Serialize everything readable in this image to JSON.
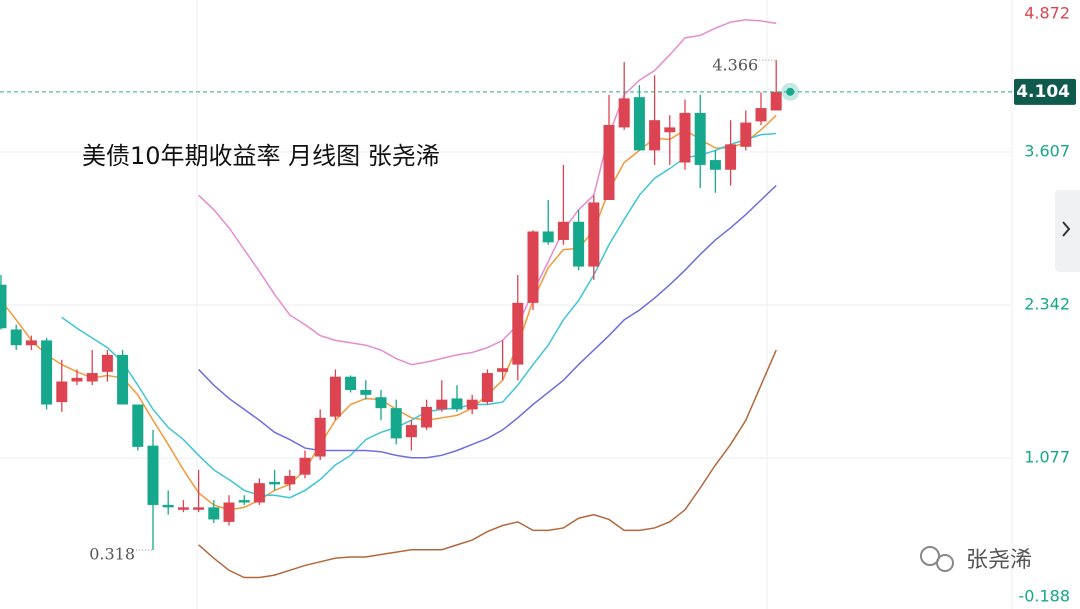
{
  "chart_data": {
    "type": "candlestick",
    "title": "美债10年期收益率 月线图 张尧浠",
    "watermark": "张尧浠",
    "ylim": [
      -0.17,
      4.863
    ],
    "yticks": [
      4.872,
      3.607,
      2.342,
      1.077,
      -0.188
    ],
    "grid": true,
    "last_price": 4.104,
    "annotations": [
      {
        "value": 4.366
      },
      {
        "value": 0.318
      }
    ],
    "up_color": "#dd4451",
    "down_color": "#16a88c",
    "open": [
      2.51,
      2.14,
      2.01,
      2.05,
      1.54,
      1.71,
      1.71,
      1.79,
      1.93,
      1.52,
      1.18,
      0.69,
      0.65,
      0.65,
      0.67,
      0.55,
      0.73,
      0.71,
      0.88,
      0.86,
      0.94,
      1.09,
      1.42,
      1.75,
      1.64,
      1.58,
      1.49,
      1.25,
      1.33,
      1.48,
      1.57,
      1.48,
      1.54,
      1.79,
      1.85,
      2.36,
      2.95,
      2.88,
      3.03,
      2.66,
      3.21,
      3.81,
      4.06,
      3.62,
      3.77,
      3.52,
      3.93,
      3.54,
      3.46,
      3.65,
      3.86,
      3.95
    ],
    "high": [
      2.59,
      2.18,
      2.09,
      2.07,
      1.89,
      1.81,
      1.97,
      1.97,
      1.97,
      1.52,
      1.31,
      0.81,
      0.73,
      0.98,
      0.73,
      0.77,
      0.77,
      0.91,
      0.98,
      0.98,
      1.14,
      1.48,
      1.81,
      1.76,
      1.72,
      1.64,
      1.56,
      1.39,
      1.56,
      1.72,
      1.68,
      1.6,
      1.81,
      2.05,
      2.59,
      2.96,
      3.21,
      3.5,
      3.13,
      3.25,
      4.08,
      4.35,
      4.16,
      4.24,
      3.91,
      4.04,
      4.08,
      3.62,
      3.87,
      3.95,
      4.1,
      4.366
    ],
    "low": [
      2.14,
      1.97,
      1.97,
      1.48,
      1.46,
      1.68,
      1.68,
      1.71,
      1.52,
      1.14,
      0.318,
      0.61,
      0.63,
      0.63,
      0.54,
      0.52,
      0.69,
      0.69,
      0.81,
      0.81,
      0.91,
      1.06,
      1.39,
      1.62,
      1.56,
      1.39,
      1.19,
      1.14,
      1.31,
      1.46,
      1.46,
      1.44,
      1.52,
      1.72,
      1.72,
      2.3,
      2.84,
      2.84,
      2.63,
      2.55,
      3.21,
      3.79,
      3.62,
      3.5,
      3.5,
      3.46,
      3.31,
      3.27,
      3.33,
      3.62,
      3.83,
      3.95
    ],
    "close": [
      2.15,
      2.01,
      2.05,
      1.52,
      1.71,
      1.74,
      1.78,
      1.93,
      1.52,
      1.17,
      0.69,
      0.67,
      0.67,
      0.67,
      0.57,
      0.71,
      0.71,
      0.87,
      0.86,
      0.93,
      1.08,
      1.41,
      1.75,
      1.64,
      1.6,
      1.49,
      1.24,
      1.35,
      1.5,
      1.56,
      1.48,
      1.56,
      1.78,
      1.82,
      2.36,
      2.95,
      2.86,
      3.03,
      2.66,
      3.19,
      3.83,
      4.05,
      3.62,
      3.87,
      3.81,
      3.93,
      3.5,
      3.46,
      3.67,
      3.85,
      3.97,
      4.104
    ],
    "lines": [
      {
        "color": "#f29a3a",
        "values": [
          2.38,
          2.22,
          2.05,
          1.93,
          1.85,
          1.79,
          1.74,
          1.76,
          1.74,
          1.6,
          1.39,
          1.19,
          0.98,
          0.79,
          0.69,
          0.65,
          0.67,
          0.73,
          0.81,
          0.86,
          0.98,
          1.19,
          1.39,
          1.52,
          1.57,
          1.56,
          1.48,
          1.41,
          1.39,
          1.41,
          1.43,
          1.49,
          1.6,
          1.72,
          2.01,
          2.38,
          2.65,
          2.8,
          2.81,
          2.96,
          3.29,
          3.52,
          3.62,
          3.72,
          3.71,
          3.79,
          3.71,
          3.64,
          3.64,
          3.69,
          3.79,
          3.91
        ]
      },
      {
        "color": "#3fc6d4",
        "values": [
          null,
          null,
          null,
          null,
          2.24,
          2.15,
          2.07,
          1.99,
          1.87,
          1.68,
          1.48,
          1.33,
          1.23,
          1.1,
          0.98,
          0.9,
          0.81,
          0.77,
          0.77,
          0.75,
          0.81,
          0.9,
          1.02,
          1.1,
          1.23,
          1.29,
          1.33,
          1.39,
          1.46,
          1.48,
          1.49,
          1.52,
          1.52,
          1.54,
          1.68,
          1.85,
          2.01,
          2.22,
          2.38,
          2.59,
          2.84,
          3.05,
          3.25,
          3.39,
          3.47,
          3.56,
          3.58,
          3.62,
          3.67,
          3.71,
          3.75,
          3.76
        ]
      },
      {
        "color": "#6d6ee0",
        "values": [
          null,
          null,
          null,
          null,
          null,
          null,
          null,
          null,
          null,
          null,
          null,
          null,
          null,
          1.81,
          1.68,
          1.57,
          1.48,
          1.39,
          1.29,
          1.23,
          1.16,
          1.14,
          1.14,
          1.14,
          1.14,
          1.13,
          1.1,
          1.08,
          1.08,
          1.1,
          1.14,
          1.19,
          1.24,
          1.31,
          1.41,
          1.52,
          1.62,
          1.72,
          1.85,
          1.97,
          2.09,
          2.22,
          2.3,
          2.4,
          2.51,
          2.63,
          2.76,
          2.88,
          2.98,
          3.09,
          3.21,
          3.33
        ]
      },
      {
        "color": "#e68cd2",
        "values": [
          null,
          null,
          null,
          null,
          null,
          null,
          null,
          null,
          null,
          null,
          null,
          null,
          null,
          3.25,
          3.13,
          2.98,
          2.8,
          2.62,
          2.43,
          2.26,
          2.18,
          2.09,
          2.05,
          2.03,
          2.01,
          1.97,
          1.9,
          1.85,
          1.87,
          1.9,
          1.93,
          1.95,
          1.99,
          2.05,
          2.18,
          2.45,
          2.7,
          2.96,
          3.13,
          3.25,
          3.75,
          4.08,
          4.2,
          4.28,
          4.41,
          4.55,
          4.57,
          4.63,
          4.68,
          4.7,
          4.69,
          4.67
        ]
      },
      {
        "color": "#b3683c",
        "values": [
          null,
          null,
          null,
          null,
          null,
          null,
          null,
          null,
          null,
          null,
          null,
          null,
          null,
          0.36,
          0.25,
          0.15,
          0.09,
          0.09,
          0.11,
          0.15,
          0.19,
          0.22,
          0.25,
          0.26,
          0.26,
          0.28,
          0.3,
          0.32,
          0.32,
          0.32,
          0.36,
          0.4,
          0.47,
          0.52,
          0.55,
          0.48,
          0.48,
          0.5,
          0.58,
          0.61,
          0.57,
          0.48,
          0.48,
          0.5,
          0.55,
          0.65,
          0.83,
          1.02,
          1.19,
          1.39,
          1.68,
          1.97
        ]
      }
    ]
  }
}
